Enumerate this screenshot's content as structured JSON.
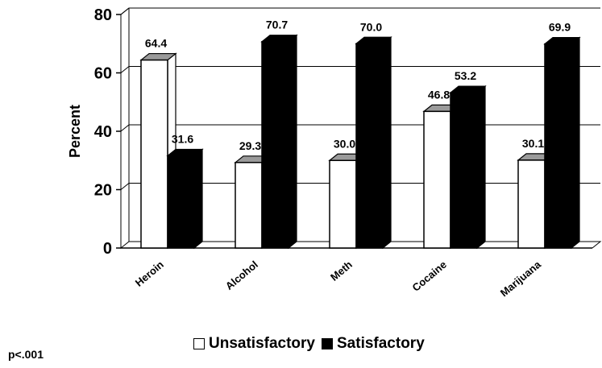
{
  "chart_data": {
    "type": "bar",
    "title": "",
    "xlabel": "",
    "ylabel": "Percent",
    "ylim": [
      0,
      80
    ],
    "yticks": [
      0,
      20,
      40,
      60,
      80
    ],
    "categories": [
      "Heroin",
      "Alcohol",
      "Meth",
      "Cocaine",
      "Marijuana"
    ],
    "series": [
      {
        "name": "Unsatisfactory",
        "color": "#ffffff",
        "values": [
          64.4,
          29.3,
          30.0,
          46.8,
          30.1
        ],
        "labels": [
          "64.4",
          "29.3",
          "30.0",
          "46.8",
          "30.1"
        ]
      },
      {
        "name": "Satisfactory",
        "color": "#000000",
        "values": [
          31.6,
          70.7,
          70.0,
          53.2,
          69.9
        ],
        "labels": [
          "31.6",
          "70.7",
          "70.0",
          "53.2",
          "69.9"
        ]
      }
    ],
    "grid": true,
    "style": "3d",
    "legend_position": "bottom"
  },
  "note": "p<.001"
}
